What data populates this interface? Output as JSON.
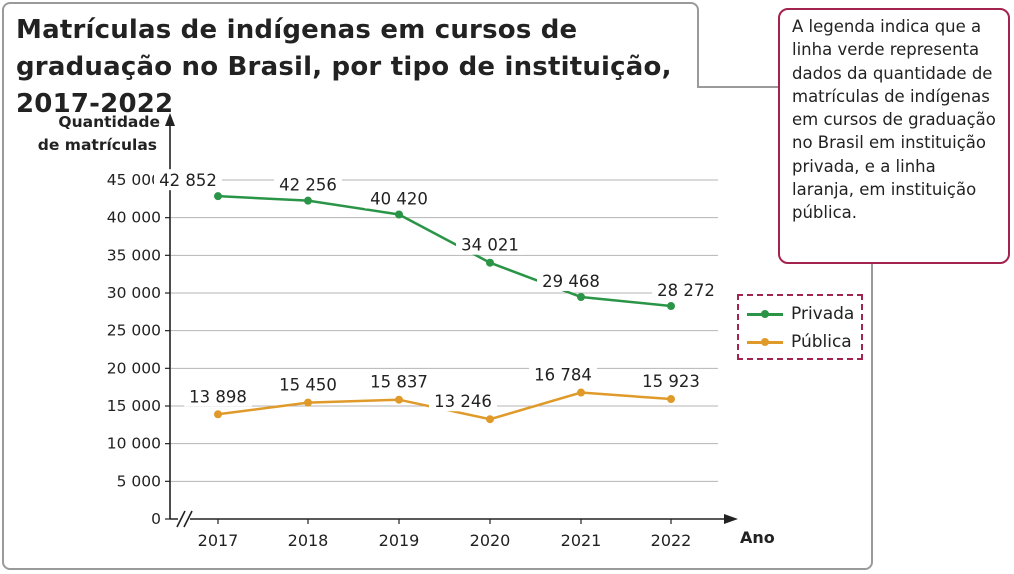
{
  "title": "Matrículas de indígenas em cursos de graduação no Brasil, por tipo de instituição, 2017-2022",
  "callout_text": "A legenda indica que a linha verde representa dados da quantidade de matrículas de indígenas em cursos de graduação no Brasil em instituição privada, e a linha laranja, em instituição pública.",
  "colors": {
    "privada": "#2a9447",
    "publica": "#e09a2a",
    "callout_border": "#a3234f",
    "grid": "#b5b5b5",
    "axis": "#222222"
  },
  "chart_data": {
    "type": "line",
    "title": "Matrículas de indígenas em cursos de graduação no Brasil, por tipo de instituição, 2017-2022",
    "xlabel": "Ano",
    "ylabel": "Quantidade de matrículas",
    "x": [
      "2017",
      "2018",
      "2019",
      "2020",
      "2021",
      "2022"
    ],
    "ylim": [
      0,
      45000
    ],
    "yticks": [
      0,
      5000,
      10000,
      15000,
      20000,
      25000,
      30000,
      35000,
      40000,
      45000
    ],
    "ytick_labels": [
      "0",
      "5 000",
      "10 000",
      "15 000",
      "20 000",
      "25 000",
      "30 000",
      "35 000",
      "40 000",
      "45 000"
    ],
    "grid": true,
    "legend_position": "right",
    "series": [
      {
        "name": "Privada",
        "color": "#2a9447",
        "values": [
          42852,
          42256,
          40420,
          34021,
          29468,
          28272
        ],
        "labels": [
          "42 852",
          "42 256",
          "40 420",
          "34 021",
          "29 468",
          "28 272"
        ]
      },
      {
        "name": "Pública",
        "color": "#e09a2a",
        "values": [
          13898,
          15450,
          15837,
          13246,
          16784,
          15923
        ],
        "labels": [
          "13 898",
          "15 450",
          "15 837",
          "13 246",
          "16 784",
          "15 923"
        ]
      }
    ]
  }
}
